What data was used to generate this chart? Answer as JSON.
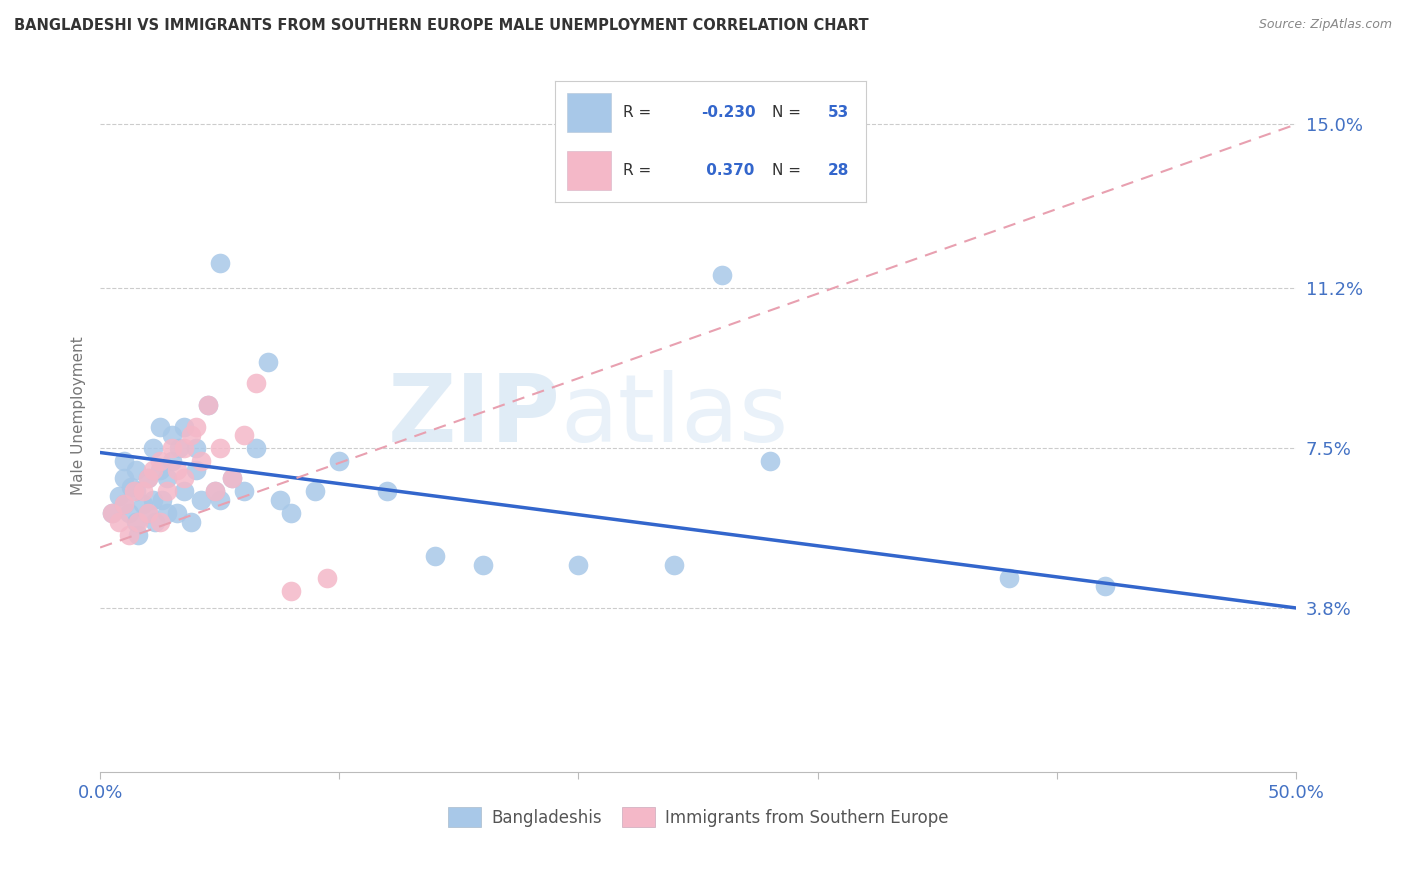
{
  "title": "BANGLADESHI VS IMMIGRANTS FROM SOUTHERN EUROPE MALE UNEMPLOYMENT CORRELATION CHART",
  "source": "Source: ZipAtlas.com",
  "ylabel": "Male Unemployment",
  "yticks": [
    0.038,
    0.075,
    0.112,
    0.15
  ],
  "ytick_labels": [
    "3.8%",
    "7.5%",
    "11.2%",
    "15.0%"
  ],
  "xlim": [
    0.0,
    0.5
  ],
  "ylim": [
    0.0,
    0.165
  ],
  "blue_color": "#a8c8e8",
  "pink_color": "#f4b8c8",
  "blue_line_color": "#3366cc",
  "pink_line_color": "#e8a0b0",
  "blue_scatter_x": [
    0.005,
    0.008,
    0.01,
    0.01,
    0.01,
    0.012,
    0.013,
    0.015,
    0.015,
    0.015,
    0.016,
    0.018,
    0.02,
    0.02,
    0.022,
    0.022,
    0.023,
    0.025,
    0.025,
    0.026,
    0.028,
    0.028,
    0.03,
    0.03,
    0.032,
    0.033,
    0.035,
    0.035,
    0.038,
    0.04,
    0.04,
    0.042,
    0.045,
    0.048,
    0.05,
    0.055,
    0.06,
    0.065,
    0.07,
    0.075,
    0.08,
    0.09,
    0.1,
    0.12,
    0.14,
    0.16,
    0.2,
    0.24,
    0.26,
    0.28,
    0.38,
    0.42,
    0.05
  ],
  "blue_scatter_y": [
    0.06,
    0.064,
    0.062,
    0.068,
    0.072,
    0.06,
    0.066,
    0.058,
    0.065,
    0.07,
    0.055,
    0.062,
    0.06,
    0.068,
    0.063,
    0.075,
    0.058,
    0.07,
    0.08,
    0.063,
    0.06,
    0.068,
    0.072,
    0.078,
    0.06,
    0.075,
    0.065,
    0.08,
    0.058,
    0.07,
    0.075,
    0.063,
    0.085,
    0.065,
    0.063,
    0.068,
    0.065,
    0.075,
    0.095,
    0.063,
    0.06,
    0.065,
    0.072,
    0.065,
    0.05,
    0.048,
    0.048,
    0.048,
    0.115,
    0.072,
    0.045,
    0.043,
    0.118
  ],
  "pink_scatter_x": [
    0.005,
    0.008,
    0.01,
    0.012,
    0.014,
    0.016,
    0.018,
    0.02,
    0.02,
    0.022,
    0.025,
    0.025,
    0.028,
    0.03,
    0.032,
    0.035,
    0.035,
    0.038,
    0.04,
    0.042,
    0.045,
    0.048,
    0.05,
    0.055,
    0.06,
    0.065,
    0.08,
    0.095
  ],
  "pink_scatter_y": [
    0.06,
    0.058,
    0.062,
    0.055,
    0.065,
    0.058,
    0.065,
    0.06,
    0.068,
    0.07,
    0.058,
    0.072,
    0.065,
    0.075,
    0.07,
    0.068,
    0.075,
    0.078,
    0.08,
    0.072,
    0.085,
    0.065,
    0.075,
    0.068,
    0.078,
    0.09,
    0.042,
    0.045
  ],
  "blue_trend_x": [
    0.0,
    0.5
  ],
  "blue_trend_y": [
    0.074,
    0.038
  ],
  "pink_trend_x": [
    0.0,
    0.5
  ],
  "pink_trend_y": [
    0.052,
    0.15
  ],
  "watermark_zip": "ZIP",
  "watermark_atlas": "atlas",
  "background_color": "#ffffff",
  "grid_color": "#cccccc",
  "axis_label_color": "#4472c4",
  "title_color": "#333333",
  "source_color": "#888888"
}
